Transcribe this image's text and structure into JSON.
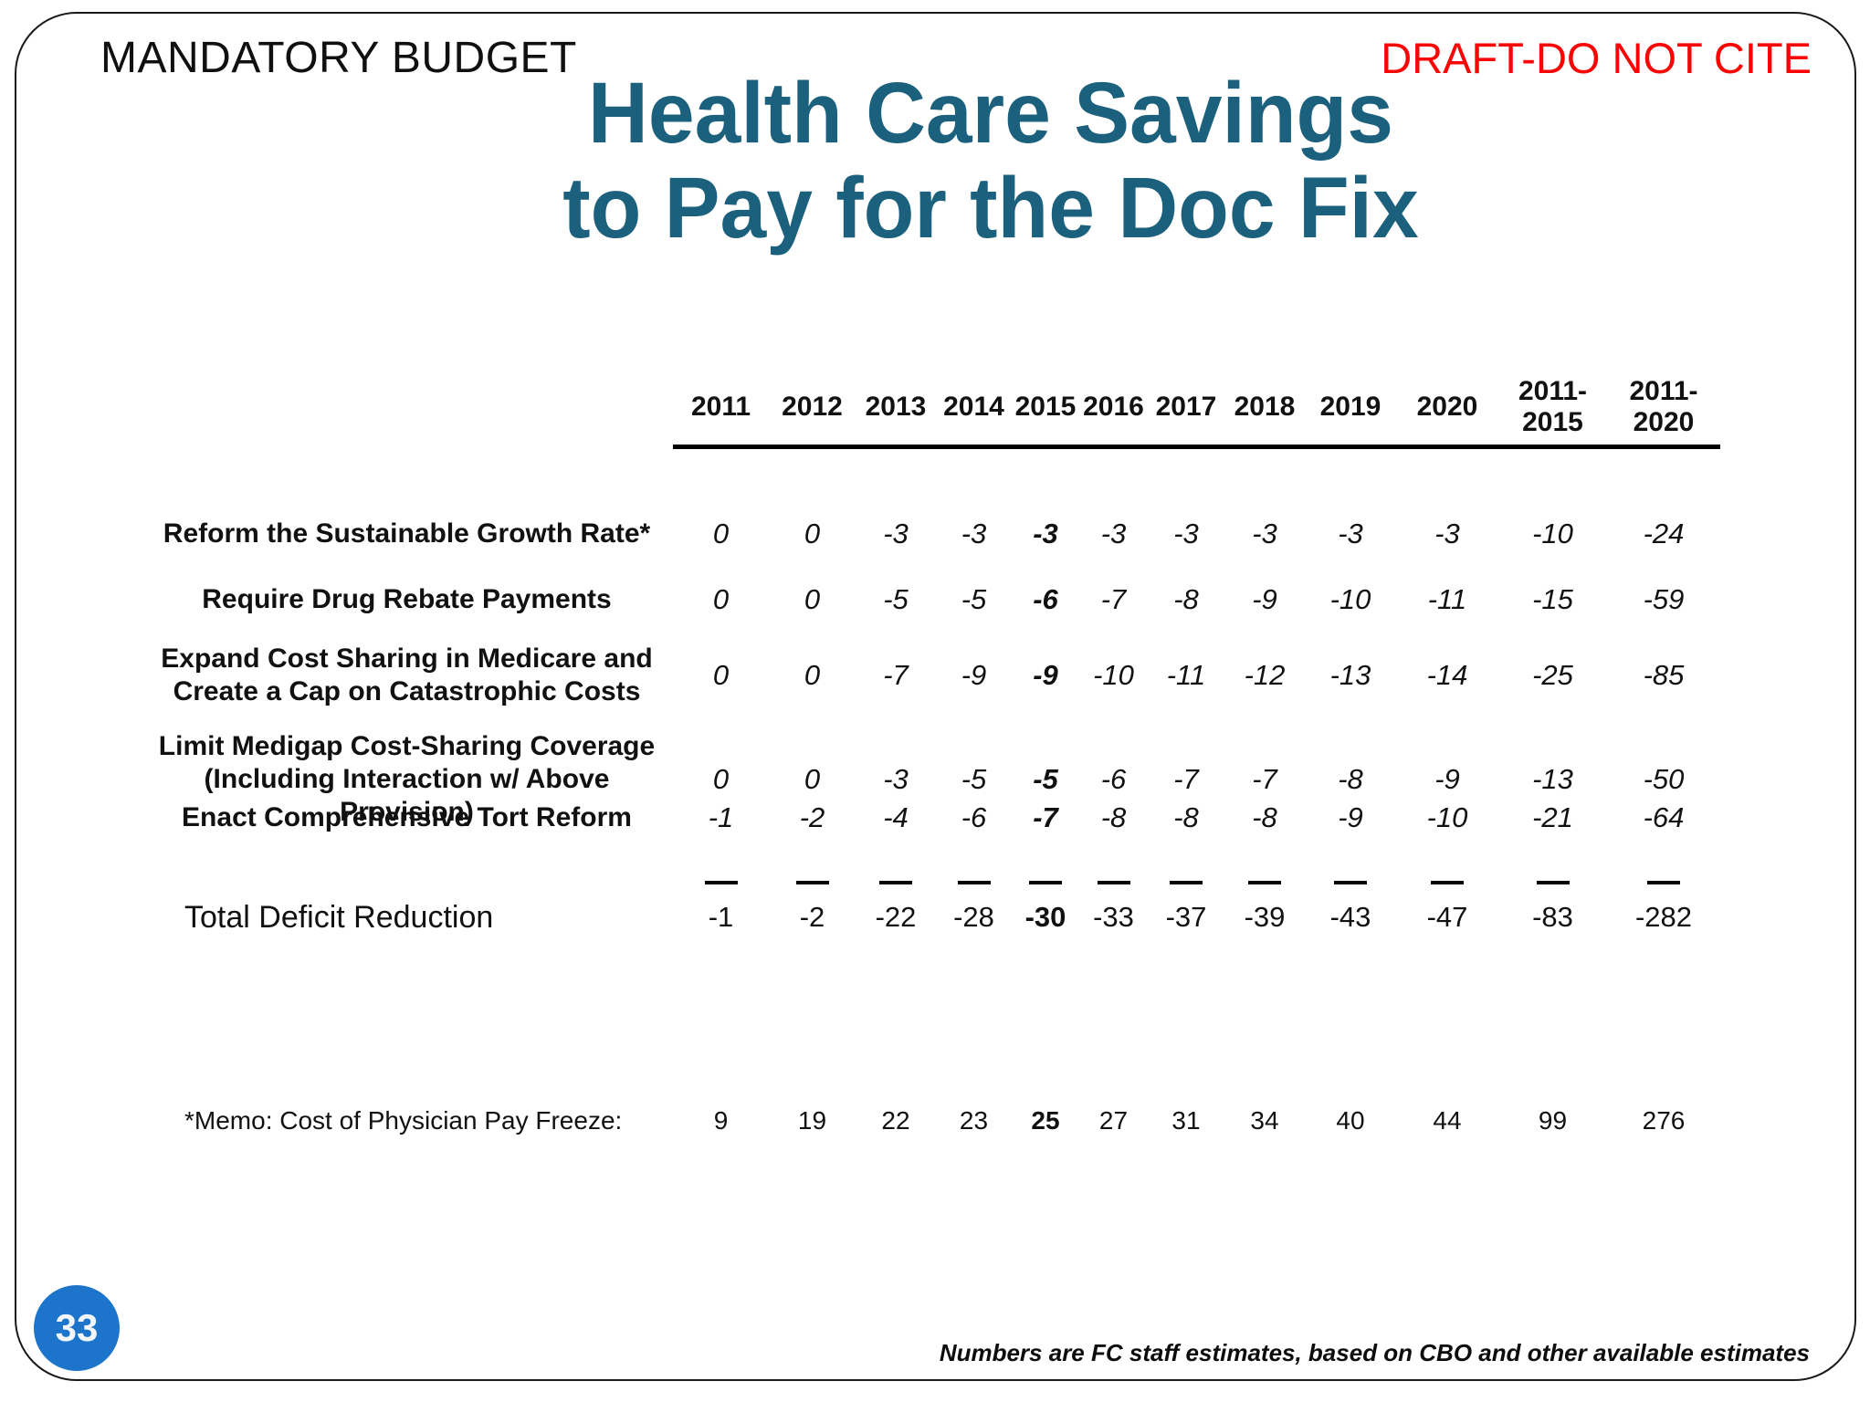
{
  "slide": {
    "eyebrow": "MANDATORY BUDGET",
    "draft_notice": "DRAFT-DO NOT CITE",
    "title_line1": "Health Care Savings",
    "title_line2": "to Pay for the Doc Fix",
    "page_number": "33",
    "footnote": "Numbers are FC staff estimates, based on CBO and other available estimates",
    "colors": {
      "title_teal": "#1b607c",
      "draft_red": "#fa0505",
      "page_circle_blue": "#1c74cb"
    }
  },
  "table": {
    "bold_value_column_index": 4,
    "columns": [
      [
        "2011"
      ],
      [
        "2012"
      ],
      [
        "2013"
      ],
      [
        "2014"
      ],
      [
        "2015"
      ],
      [
        "2016"
      ],
      [
        "2017"
      ],
      [
        "2018"
      ],
      [
        "2019"
      ],
      [
        "2020"
      ],
      [
        "2011-",
        "2015"
      ],
      [
        "2011-",
        "2020"
      ]
    ],
    "rows": [
      {
        "label_lines": [
          "Reform the Sustainable Growth Rate*"
        ],
        "values": [
          "0",
          "0",
          "-3",
          "-3",
          "-3",
          "-3",
          "-3",
          "-3",
          "-3",
          "-3",
          "-10",
          "-24"
        ]
      },
      {
        "label_lines": [
          "Require Drug Rebate Payments"
        ],
        "values": [
          "0",
          "0",
          "-5",
          "-5",
          "-6",
          "-7",
          "-8",
          "-9",
          "-10",
          "-11",
          "-15",
          "-59"
        ]
      },
      {
        "label_lines": [
          "Expand Cost Sharing in Medicare and",
          "Create a Cap on Catastrophic Costs"
        ],
        "values": [
          "0",
          "0",
          "-7",
          "-9",
          "-9",
          "-10",
          "-11",
          "-12",
          "-13",
          "-14",
          "-25",
          "-85"
        ]
      },
      {
        "label_lines": [
          "Limit Medigap Cost-Sharing Coverage",
          "(Including Interaction w/ Above Provision)"
        ],
        "values": [
          "0",
          "0",
          "-3",
          "-5",
          "-5",
          "-6",
          "-7",
          "-7",
          "-8",
          "-9",
          "-13",
          "-50"
        ]
      },
      {
        "label_lines": [
          "Enact Comprehensive Tort Reform"
        ],
        "values": [
          "-1",
          "-2",
          "-4",
          "-6",
          "-7",
          "-8",
          "-8",
          "-8",
          "-9",
          "-10",
          "-21",
          "-64"
        ]
      }
    ],
    "total_row": {
      "label": "Total Deficit Reduction",
      "values": [
        "-1",
        "-2",
        "-22",
        "-28",
        "-30",
        "-33",
        "-37",
        "-39",
        "-43",
        "-47",
        "-83",
        "-282"
      ]
    },
    "memo_row": {
      "label": "*Memo: Cost of Physician Pay Freeze:",
      "values": [
        "9",
        "19",
        "22",
        "23",
        "25",
        "27",
        "31",
        "34",
        "40",
        "44",
        "99",
        "276"
      ]
    }
  }
}
